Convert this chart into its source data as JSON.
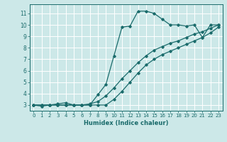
{
  "xlabel": "Humidex (Indice chaleur)",
  "background_color": "#cce8e8",
  "grid_color": "#ffffff",
  "line_color": "#1a6b6b",
  "xlim": [
    -0.5,
    23.5
  ],
  "ylim": [
    2.5,
    11.8
  ],
  "xticks": [
    0,
    1,
    2,
    3,
    4,
    5,
    6,
    7,
    8,
    9,
    10,
    11,
    12,
    13,
    14,
    15,
    16,
    17,
    18,
    19,
    20,
    21,
    22,
    23
  ],
  "yticks": [
    3,
    4,
    5,
    6,
    7,
    8,
    9,
    10,
    11
  ],
  "curve1_x": [
    0,
    1,
    2,
    3,
    4,
    5,
    6,
    7,
    8,
    9,
    10,
    11,
    12,
    13,
    14,
    15,
    16,
    17,
    18,
    19,
    20,
    21,
    22,
    23
  ],
  "curve1_y": [
    3.0,
    2.9,
    3.0,
    3.1,
    3.2,
    3.0,
    3.0,
    3.0,
    3.9,
    4.8,
    7.3,
    9.8,
    9.9,
    11.2,
    11.2,
    11.0,
    10.5,
    10.0,
    10.0,
    9.9,
    10.0,
    8.9,
    10.0,
    10.0
  ],
  "curve2_x": [
    0,
    1,
    2,
    3,
    4,
    5,
    6,
    7,
    8,
    9,
    10,
    11,
    12,
    13,
    14,
    15,
    16,
    17,
    18,
    19,
    20,
    21,
    22,
    23
  ],
  "curve2_y": [
    3.0,
    3.0,
    3.0,
    3.0,
    3.0,
    3.0,
    3.0,
    3.1,
    3.3,
    3.8,
    4.5,
    5.3,
    6.0,
    6.7,
    7.3,
    7.8,
    8.1,
    8.4,
    8.6,
    8.9,
    9.2,
    9.4,
    9.7,
    10.0
  ],
  "curve3_x": [
    0,
    1,
    2,
    3,
    4,
    5,
    6,
    7,
    8,
    9,
    10,
    11,
    12,
    13,
    14,
    15,
    16,
    17,
    18,
    19,
    20,
    21,
    22,
    23
  ],
  "curve3_y": [
    3.0,
    3.0,
    3.0,
    3.0,
    3.0,
    3.0,
    3.0,
    3.0,
    3.0,
    3.0,
    3.5,
    4.2,
    5.0,
    5.8,
    6.5,
    7.0,
    7.4,
    7.7,
    8.0,
    8.3,
    8.6,
    8.9,
    9.3,
    9.8
  ]
}
